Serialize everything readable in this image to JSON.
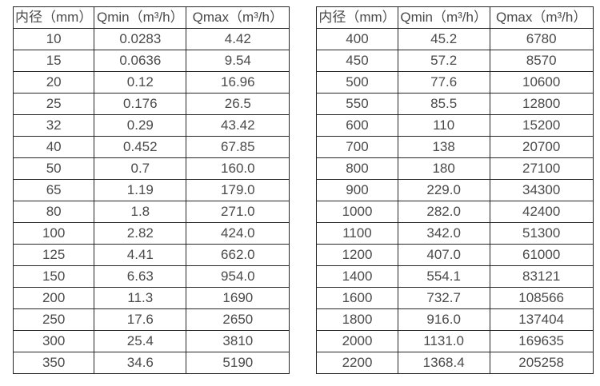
{
  "page": {
    "background_color": "#ffffff",
    "text_color": "#4a4a4a",
    "border_color": "#262626"
  },
  "tables": [
    {
      "title": "small-diameter-flow-ranges",
      "headers": [
        "内径（mm）",
        "Qmin（m³/h）",
        "Qmax（m³/h）"
      ],
      "rows": [
        [
          "10",
          "0.0283",
          "4.42"
        ],
        [
          "15",
          "0.0636",
          "9.54"
        ],
        [
          "20",
          "0.12",
          "16.96"
        ],
        [
          "25",
          "0.176",
          "26.5"
        ],
        [
          "32",
          "0.29",
          "43.42"
        ],
        [
          "40",
          "0.452",
          "67.85"
        ],
        [
          "50",
          "0.7",
          "160.0"
        ],
        [
          "65",
          "1.19",
          "179.0"
        ],
        [
          "80",
          "1.8",
          "271.0"
        ],
        [
          "100",
          "2.82",
          "424.0"
        ],
        [
          "125",
          "4.41",
          "662.0"
        ],
        [
          "150",
          "6.63",
          "954.0"
        ],
        [
          "200",
          "11.3",
          "1690"
        ],
        [
          "250",
          "17.6",
          "2650"
        ],
        [
          "300",
          "25.4",
          "3810"
        ],
        [
          "350",
          "34.6",
          "5190"
        ]
      ]
    },
    {
      "title": "large-diameter-flow-ranges",
      "headers": [
        "内径（mm）",
        "Qmin（m³/h）",
        "Qmax（m³/h）"
      ],
      "rows": [
        [
          "400",
          "45.2",
          "6780"
        ],
        [
          "450",
          "57.2",
          "8570"
        ],
        [
          "500",
          "77.6",
          "10600"
        ],
        [
          "550",
          "85.5",
          "12800"
        ],
        [
          "600",
          "110",
          "15200"
        ],
        [
          "700",
          "138",
          "20700"
        ],
        [
          "800",
          "180",
          "27100"
        ],
        [
          "900",
          "229.0",
          "34300"
        ],
        [
          "1000",
          "282.0",
          "42400"
        ],
        [
          "1100",
          "342.0",
          "51300"
        ],
        [
          "1200",
          "407.0",
          "61000"
        ],
        [
          "1400",
          "554.1",
          "83121"
        ],
        [
          "1600",
          "732.7",
          "108566"
        ],
        [
          "1800",
          "916.0",
          "137404"
        ],
        [
          "2000",
          "1131.0",
          "169635"
        ],
        [
          "2200",
          "1368.4",
          "205258"
        ]
      ]
    }
  ]
}
